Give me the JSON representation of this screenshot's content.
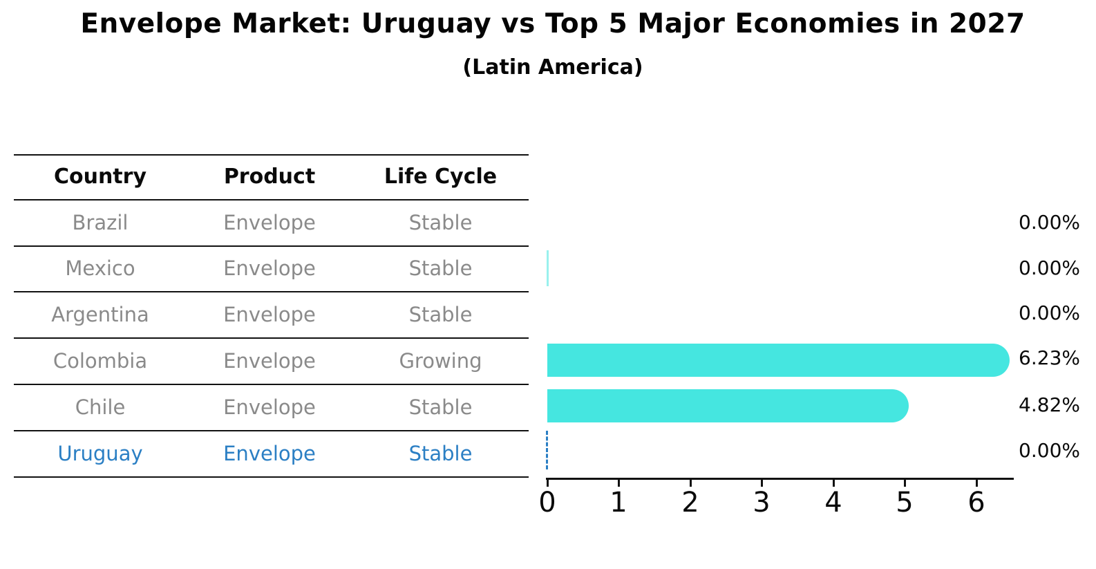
{
  "title": "Envelope Market: Uruguay vs Top 5 Major Economies in 2027",
  "subtitle": "(Latin America)",
  "table": {
    "headers": [
      "Country",
      "Product",
      "Life Cycle"
    ],
    "rows": [
      {
        "country": "Brazil",
        "product": "Envelope",
        "life_cycle": "Stable",
        "highlight": false
      },
      {
        "country": "Mexico",
        "product": "Envelope",
        "life_cycle": "Stable",
        "highlight": false
      },
      {
        "country": "Argentina",
        "product": "Envelope",
        "life_cycle": "Stable",
        "highlight": false
      },
      {
        "country": "Colombia",
        "product": "Envelope",
        "life_cycle": "Growing",
        "highlight": false
      },
      {
        "country": "Chile",
        "product": "Envelope",
        "life_cycle": "Stable",
        "highlight": false
      },
      {
        "country": "Uruguay",
        "product": "Envelope",
        "life_cycle": "Stable",
        "highlight": true
      }
    ]
  },
  "chart_data": {
    "type": "bar",
    "orientation": "horizontal",
    "title": "Envelope Market: Uruguay vs Top 5 Major Economies in 2027",
    "subtitle": "(Latin America)",
    "categories": [
      "Brazil",
      "Mexico",
      "Argentina",
      "Colombia",
      "Chile",
      "Uruguay"
    ],
    "values": [
      0.0,
      0.0,
      0.0,
      6.23,
      4.82,
      0.0
    ],
    "value_labels": [
      "0.00%",
      "0.00%",
      "0.00%",
      "6.23%",
      "4.82%",
      "0.00%"
    ],
    "x_ticks": [
      0,
      1,
      2,
      3,
      4,
      5,
      6
    ],
    "xlim": [
      0,
      6.52
    ],
    "xlabel": "",
    "ylabel": "",
    "grid": false,
    "legend": "none",
    "bar_color": "#45e6e0",
    "highlight_color": "#2b7fc4",
    "highlight_category": "Uruguay",
    "uruguay_zero_marker": "dashed vertical line at 0 on Uruguay row",
    "mexico_zero_marker": "thin bar sliver at 0 on Mexico row"
  }
}
